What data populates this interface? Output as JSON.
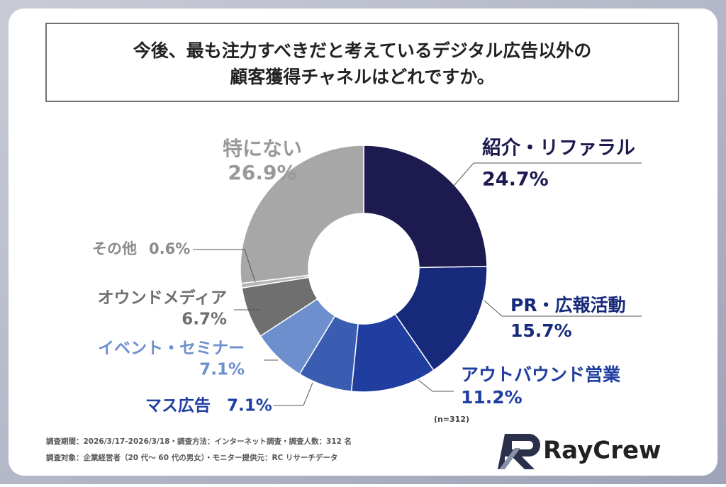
{
  "header": {
    "title_lines": [
      "今後、最も注力すべきだと考えているデジタル広告以外の",
      "顧客獲得チャネルはどれですか。"
    ]
  },
  "chart_data": {
    "type": "donut",
    "categories": [
      "紹介・リファラル",
      "PR・広報活動",
      "アウトバウンド営業",
      "マス広告",
      "イベント・セミナー",
      "オウンドメディア",
      "その他",
      "特にない"
    ],
    "values": [
      24.7,
      15.7,
      11.2,
      7.1,
      7.1,
      6.7,
      0.6,
      26.9
    ],
    "value_labels": [
      "24.7%",
      "15.7%",
      "11.2%",
      "7.1%",
      "7.1%",
      "6.7%",
      "0.6%",
      "26.9%"
    ],
    "colors": [
      "#1d1a4f",
      "#16297a",
      "#1f3ea0",
      "#3a5db2",
      "#6d8fcd",
      "#6f6f6f",
      "#b5b5b5",
      "#a7a7a7"
    ],
    "note": "(n=312)"
  },
  "footer": {
    "lines": [
      "調査期間：2026/3/17-2026/3/18・調査方法：インターネット調査・調査人数：312 名",
      "調査対象：企業経営者（20 代〜 60 代の男女）・モニター提供元：RC リサーチデータ"
    ],
    "logo": "RayCrew"
  }
}
